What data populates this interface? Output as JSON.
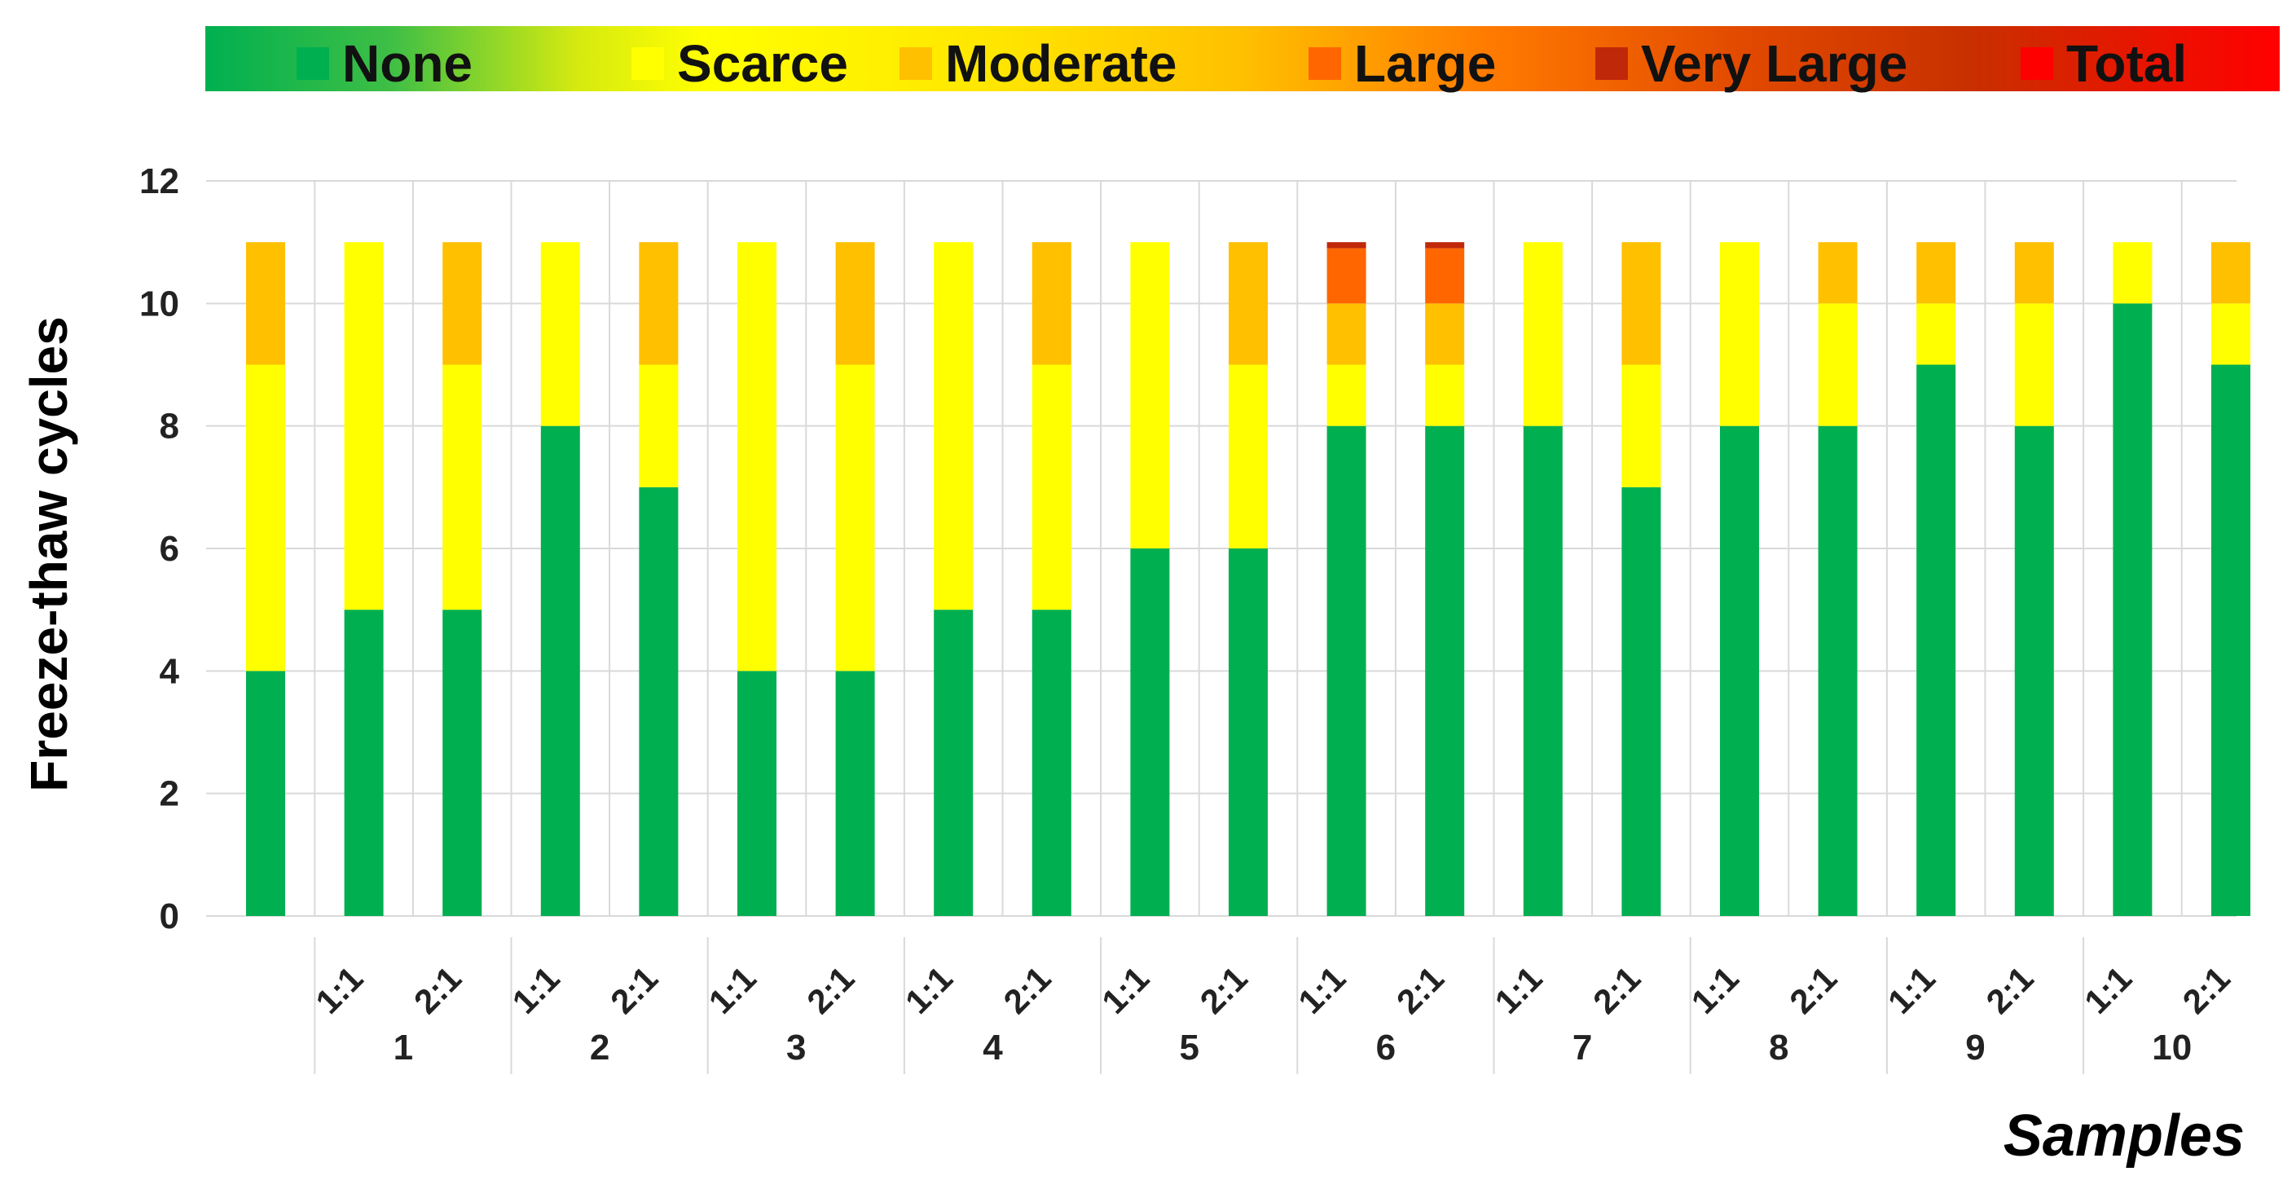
{
  "chart_data": {
    "type": "bar",
    "stacked": true,
    "title": "",
    "xlabel": "Samples",
    "ylabel": "Freeze-thaw cycles",
    "ylim": [
      0,
      12
    ],
    "yticks": [
      0,
      2,
      4,
      6,
      8,
      10,
      12
    ],
    "grid": true,
    "legend_position": "top",
    "bars": [
      {
        "ratio": "",
        "group": ""
      },
      {
        "ratio": "1:1",
        "group": "1"
      },
      {
        "ratio": "2:1",
        "group": "1"
      },
      {
        "ratio": "1:1",
        "group": "2"
      },
      {
        "ratio": "2:1",
        "group": "2"
      },
      {
        "ratio": "1:1",
        "group": "3"
      },
      {
        "ratio": "2:1",
        "group": "3"
      },
      {
        "ratio": "1:1",
        "group": "4"
      },
      {
        "ratio": "2:1",
        "group": "4"
      },
      {
        "ratio": "1:1",
        "group": "5"
      },
      {
        "ratio": "2:1",
        "group": "5"
      },
      {
        "ratio": "1:1",
        "group": "6"
      },
      {
        "ratio": "2:1",
        "group": "6"
      },
      {
        "ratio": "1:1",
        "group": "7"
      },
      {
        "ratio": "2:1",
        "group": "7"
      },
      {
        "ratio": "1:1",
        "group": "8"
      },
      {
        "ratio": "2:1",
        "group": "8"
      },
      {
        "ratio": "1:1",
        "group": "9"
      },
      {
        "ratio": "2:1",
        "group": "9"
      },
      {
        "ratio": "1:1",
        "group": "10"
      },
      {
        "ratio": "2:1",
        "group": "10"
      }
    ],
    "groups": [
      "1",
      "2",
      "3",
      "4",
      "5",
      "6",
      "7",
      "8",
      "9",
      "10"
    ],
    "series": [
      {
        "name": "None",
        "color": "#00b050",
        "values": [
          4,
          5,
          5,
          8,
          7,
          4,
          4,
          5,
          5,
          6,
          6,
          8,
          8,
          8,
          7,
          8,
          8,
          9,
          8,
          10,
          9
        ]
      },
      {
        "name": "Scarce",
        "color": "#ffff00",
        "values": [
          5,
          6,
          4,
          3,
          2,
          7,
          5,
          6,
          4,
          5,
          3,
          1,
          1,
          3,
          2,
          3,
          2,
          1,
          2,
          1,
          1
        ]
      },
      {
        "name": "Moderate",
        "color": "#ffc000",
        "values": [
          2,
          0,
          2,
          0,
          2,
          0,
          2,
          0,
          2,
          0,
          2,
          1,
          1,
          0,
          2,
          0,
          1,
          1,
          1,
          0,
          1
        ]
      },
      {
        "name": "Large",
        "color": "#ff6600",
        "values": [
          0,
          0,
          0,
          0,
          0,
          0,
          0,
          0,
          0,
          0,
          0,
          0.9,
          0.9,
          0,
          0,
          0,
          0,
          0,
          0,
          0,
          0
        ]
      },
      {
        "name": "Very Large",
        "color": "#c0280a",
        "values": [
          0,
          0,
          0,
          0,
          0,
          0,
          0,
          0,
          0,
          0,
          0,
          0.1,
          0.1,
          0,
          0,
          0,
          0,
          0,
          0,
          0,
          0
        ]
      },
      {
        "name": "Total",
        "color": "#ff0000",
        "values": [
          0,
          0,
          0,
          0,
          0,
          0,
          0,
          0,
          0,
          0,
          0,
          0,
          0,
          0,
          0,
          0,
          0,
          0,
          0,
          0,
          0
        ]
      }
    ]
  }
}
